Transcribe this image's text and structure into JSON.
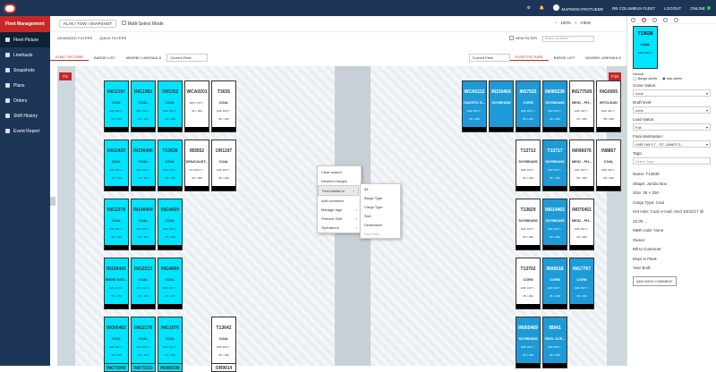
{
  "app": {
    "user": "MAPMOD-FROTUEBR",
    "fleet_selector": "RB COLUMBUS FLEET",
    "logout": "LOGOUT",
    "online": "ONLINE"
  },
  "sidebar": {
    "header": "Fleet Management",
    "items": [
      {
        "label": "Fleet Picture",
        "active": true
      },
      {
        "label": "Linehauls"
      },
      {
        "label": "Snapshots"
      },
      {
        "label": "Plans"
      },
      {
        "label": "Orders"
      },
      {
        "label": "Shift History"
      },
      {
        "label": "Event Report"
      }
    ]
  },
  "toolbar": {
    "mode_button": "FLAN / TOW / SNAPSHOT",
    "multiselect": "Multi-Select Mode",
    "zoom": "100%",
    "view": "VIEW"
  },
  "filters": {
    "advanced": "ADVANCED FILTERS",
    "quick": "QUICK FILTERS",
    "new_filter": "NEW FILTER",
    "search_placeholder": "Search by Name"
  },
  "tabs_left": [
    "FLEET PICTURE",
    "BARGE LIST",
    "NEARBY LINEHAULS"
  ],
  "tabs_right": [
    "FLEET PICTURE",
    "BARGE LIST",
    "NEARBY LINEHAULS"
  ],
  "fleet_select_left": "Current Fleet",
  "fleet_select_right": "Current Fleet",
  "lane_left": "F2",
  "lane_right": "F16",
  "barges": [
    {
      "name": "ING2197",
      "cargo": "COAL",
      "line": "LMF 193 T...",
      "size": "35 × 200",
      "color": "cyan",
      "col": 0,
      "row": 0
    },
    {
      "name": "ING1982",
      "cargo": "COAL",
      "line": "LMF 193 T...",
      "size": "35 × 200",
      "color": "cyan",
      "col": 1,
      "row": 0
    },
    {
      "name": "OR5352",
      "cargo": "COAL",
      "line": "LMF 193 T...",
      "size": "35 × 200",
      "color": "cyan",
      "col": 2,
      "row": 0
    },
    {
      "name": "WCA0201",
      "cargo": "",
      "line": "TEN 77.8 T...",
      "size": "35 × 200",
      "color": "white",
      "col": 3,
      "row": 0
    },
    {
      "name": "T3026",
      "cargo": "COAL",
      "line": "LMF 193 T...",
      "size": "35 × 200",
      "color": "white",
      "col": 4,
      "row": 0
    },
    {
      "name": "ING2420",
      "cargo": "COAL",
      "line": "LMF 193 T...",
      "size": "35 × 200",
      "color": "cyan",
      "col": 0,
      "row": 1
    },
    {
      "name": "IN196406",
      "cargo": "COAL",
      "line": "LMF 193 T...",
      "size": "35 × 200",
      "color": "cyan",
      "col": 1,
      "row": 1
    },
    {
      "name": "T13638",
      "cargo": "COAL",
      "line": "LMF 193 T...",
      "size": "35 × 200",
      "color": "cyan",
      "col": 2,
      "row": 1
    },
    {
      "name": "IB9552",
      "cargo": "SEN/CAUST...",
      "line": "CH 154.5 T...",
      "size": "35 × 200",
      "color": "white",
      "col": 3,
      "row": 1
    },
    {
      "name": "OR1197",
      "cargo": "COAL",
      "line": "LMF 193 T...",
      "size": "35 × 200",
      "color": "white",
      "col": 4,
      "row": 1
    },
    {
      "name": "ING2278",
      "cargo": "COAL",
      "line": "LMF 193 T...",
      "size": "35 × 200",
      "color": "cyan",
      "col": 0,
      "row": 2
    },
    {
      "name": "IN146404",
      "cargo": "COAL",
      "line": "LMF 193 T...",
      "size": "35 × 200",
      "color": "cyan",
      "col": 1,
      "row": 2
    },
    {
      "name": "ING4669",
      "cargo": "COAL",
      "line": "LMF 193 T...",
      "size": "35 × 200",
      "color": "cyan",
      "col": 2,
      "row": 2
    },
    {
      "name": "IN166441",
      "cargo": "BRINE DIST...",
      "line": "LMF 193 T...",
      "size": "35 × 200",
      "color": "cyan",
      "col": 0,
      "row": 3
    },
    {
      "name": "ING2213",
      "cargo": "COAL",
      "line": "LMF 193 T...",
      "size": "35 × 200",
      "color": "cyan",
      "col": 1,
      "row": 3
    },
    {
      "name": "ING4669",
      "cargo": "COAL",
      "line": "LMF 193 T...",
      "size": "35 × 200",
      "color": "cyan",
      "col": 2,
      "row": 3
    },
    {
      "name": "IN005462",
      "cargo": "COAL",
      "line": "LMF 193 T...",
      "size": "35 × 200",
      "color": "cyan",
      "col": 0,
      "row": 4
    },
    {
      "name": "ING2178",
      "cargo": "COAL",
      "line": "LMF 193 T...",
      "size": "35 × 200",
      "color": "cyan",
      "col": 1,
      "row": 4
    },
    {
      "name": "ING1976",
      "cargo": "COAL",
      "line": "LMF 193 T...",
      "size": "35 × 200",
      "color": "cyan",
      "col": 2,
      "row": 4
    },
    {
      "name": "T13642",
      "cargo": "COAL",
      "line": "LMF 193 T...",
      "size": "35 × 200",
      "color": "white",
      "col": 4,
      "row": 4
    },
    {
      "name": "WCA0112",
      "cargo": "CAUSTIC S...",
      "line": "LMF 193 T...",
      "size": "35 × 200",
      "color": "blue",
      "col": 6,
      "row": 0
    },
    {
      "name": "IN155454",
      "cargo": "SOYBEANS",
      "line": "",
      "size": "",
      "color": "blue",
      "col": 7,
      "row": 0
    },
    {
      "name": "IN57533",
      "cargo": "CORN",
      "line": "LMF 193 T...",
      "size": "35 × 200",
      "color": "blue",
      "col": 8,
      "row": 0
    },
    {
      "name": "IN085228",
      "cargo": "SOYBEANS",
      "line": "LMF 193 T...",
      "size": "35 × 200",
      "color": "blue",
      "col": 9,
      "row": 0
    },
    {
      "name": "ING77500",
      "cargo": "MES2 - PH...",
      "line": "LMF 193 T...",
      "size": "35 × 200",
      "color": "white",
      "col": 10,
      "row": 0
    },
    {
      "name": "ING5065",
      "cargo": "MT/CLEAN",
      "line": "LMF 193 T...",
      "size": "35 × 200",
      "color": "white",
      "col": 11,
      "row": 0
    },
    {
      "name": "T13713",
      "cargo": "SOYBEANS",
      "line": "LMF 193 T...",
      "size": "35 × 200",
      "color": "white",
      "col": 8,
      "row": 1
    },
    {
      "name": "T13717",
      "cargo": "SOYBEANS",
      "line": "LMF 193 T...",
      "size": "35 × 200",
      "color": "blue",
      "col": 9,
      "row": 1
    },
    {
      "name": "IN096076",
      "cargo": "MES2 - PH...",
      "line": "LMF 193 T...",
      "size": "35 × 200",
      "color": "white",
      "col": 10,
      "row": 1
    },
    {
      "name": "IN8867",
      "cargo": "COAL",
      "line": "LMF 193 T...",
      "size": "35 × 200",
      "color": "white",
      "col": 11,
      "row": 1
    },
    {
      "name": "T13829",
      "cargo": "SOYBEANS",
      "line": "LMF 193 T...",
      "size": "35 × 200",
      "color": "white",
      "col": 8,
      "row": 2
    },
    {
      "name": "IN014463",
      "cargo": "SOYBEANS",
      "line": "LMF 193 T...",
      "size": "35 × 200",
      "color": "blue",
      "col": 9,
      "row": 2
    },
    {
      "name": "IN075451",
      "cargo": "MES2 - PH...",
      "line": "LMF 193 T...",
      "size": "35 × 200",
      "color": "white",
      "col": 10,
      "row": 2
    },
    {
      "name": "T13702",
      "cargo": "CORN",
      "line": "LMF 193 T...",
      "size": "35 × 200",
      "color": "white",
      "col": 8,
      "row": 3
    },
    {
      "name": "IN06518",
      "cargo": "CORN",
      "line": "LMF 193 T...",
      "size": "35 × 200",
      "color": "blue",
      "col": 9,
      "row": 3
    },
    {
      "name": "ING7767",
      "cargo": "CORN",
      "line": "LMF 193 T...",
      "size": "35 × 200",
      "color": "blue",
      "col": 10,
      "row": 3
    },
    {
      "name": "IN005469",
      "cargo": "SOYBEANS",
      "line": "LMF 193 T...",
      "size": "35 × 200",
      "color": "blue",
      "col": 8,
      "row": 4
    },
    {
      "name": "IB941",
      "cargo": "VINYL ACE...",
      "line": "LMF 193 T...",
      "size": "35 × 200",
      "color": "blue",
      "col": 9,
      "row": 4
    },
    {
      "name": "IN075090",
      "cargo": "",
      "line": "",
      "size": "",
      "color": "cyan",
      "col": 0,
      "row": 5
    },
    {
      "name": "IN875215",
      "cargo": "",
      "line": "",
      "size": "",
      "color": "cyan",
      "col": 1,
      "row": 5
    },
    {
      "name": "IN085038",
      "cargo": "",
      "line": "",
      "size": "",
      "color": "cyan",
      "col": 2,
      "row": 5
    },
    {
      "name": "OR9014",
      "cargo": "",
      "line": "",
      "size": "",
      "color": "white",
      "col": 4,
      "row": 5
    }
  ],
  "context_menu": [
    "Clear search",
    "Deselect barges",
    "Find similar to",
    "Add comment",
    "Manage tags",
    "Perform Shift",
    "Operations"
  ],
  "context_submenu": [
    "All",
    "Barge Type",
    "Cargo Type",
    "Size",
    "Destination",
    "Line Haul"
  ],
  "right_panel": {
    "selected_barge": "T13638",
    "selected_cargo": "COAL",
    "selected_line": "LMF 193 T...",
    "section_title": "Hazmat",
    "barge_alerts": "Barge alerts",
    "has_alerts": "has alerts",
    "cover_status_label": "Cover status:",
    "cover_status": "none",
    "draft_label": "Draft level:",
    "draft": "none",
    "load_status_label": "Load status:",
    "load_status": "Full",
    "final_dest_label": "Final destination:",
    "final_dest": "LMR 169.5 T - ST. JAMES S...",
    "tags_label": "Tags:",
    "tags_placeholder": "Select Tags",
    "info": [
      "Name: T13638",
      "Shape: Jumbo Box",
      "Size: 35 × 200",
      "Cargo Type: Coal",
      "Hot note: Coal: e-mail; recd 10/31/17 @ 22:00 ...",
      "M&R code: None",
      "Owner:",
      "Bill to Customer:",
      "Days in Fleet:",
      "Year Built:"
    ],
    "add_comment": "ADD NEW COMMENT"
  }
}
